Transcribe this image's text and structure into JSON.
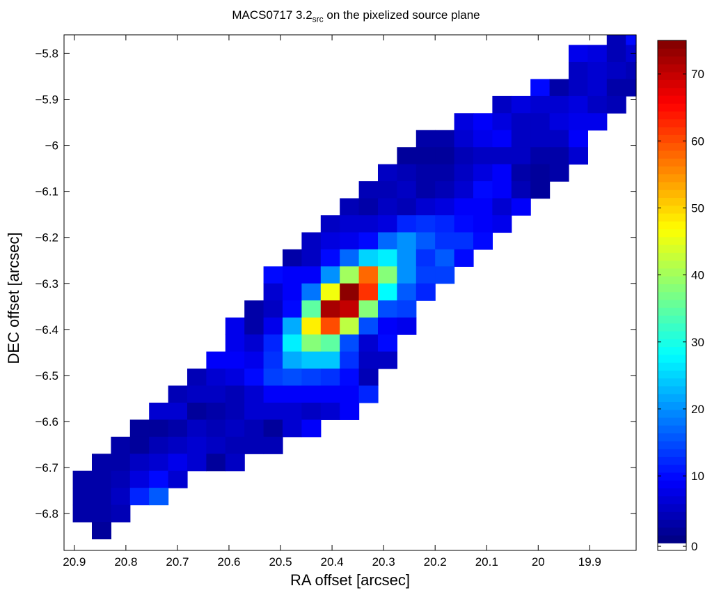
{
  "chart_data": {
    "type": "heatmap",
    "title": "MACS0717 3.2",
    "title_subscript": "src",
    "title_suffix": " on the pixelized source plane",
    "xlabel": "RA offset [arcsec]",
    "ylabel": "DEC offset [arcsec]",
    "xlim": [
      20.92,
      19.81
    ],
    "ylim": [
      -6.88,
      -5.76
    ],
    "x_reversed": true,
    "x_ticks": [
      20.9,
      20.8,
      20.7,
      20.6,
      20.5,
      20.4,
      20.3,
      20.2,
      20.1,
      20.0,
      19.9
    ],
    "x_tick_labels": [
      "20.9",
      "20.8",
      "20.7",
      "20.6",
      "20.5",
      "20.4",
      "20.3",
      "20.2",
      "20.1",
      "20",
      "19.9"
    ],
    "y_ticks": [
      -5.8,
      -5.9,
      -6.0,
      -6.1,
      -6.2,
      -6.3,
      -6.4,
      -6.5,
      -6.6,
      -6.7,
      -6.8
    ],
    "y_tick_labels": [
      "−5.8",
      "−5.9",
      "−6",
      "−6.1",
      "−6.2",
      "−6.3",
      "−6.4",
      "−6.5",
      "−6.6",
      "−6.7",
      "−6.8"
    ],
    "colorbar": {
      "colormap": "jet",
      "min": 0,
      "max": 75,
      "ticks": [
        0,
        10,
        20,
        30,
        40,
        50,
        60,
        70
      ],
      "tick_labels": [
        "0",
        "10",
        "20",
        "30",
        "40",
        "50",
        "60",
        "70"
      ]
    },
    "pixel_size_arcsec": 0.037,
    "x_start": 20.903,
    "y_start": -6.855,
    "grid": [
      [
        null,
        null,
        null,
        null,
        null,
        null,
        null,
        null,
        null,
        null,
        null,
        null,
        null,
        null,
        null,
        null,
        null,
        null,
        null,
        null,
        null,
        null,
        null,
        null,
        null,
        null,
        null,
        null,
        4,
        10,
        null
      ],
      [
        null,
        null,
        null,
        null,
        null,
        null,
        null,
        null,
        null,
        null,
        null,
        null,
        null,
        null,
        null,
        null,
        null,
        null,
        null,
        null,
        null,
        null,
        null,
        null,
        null,
        null,
        8,
        7,
        4,
        6,
        9
      ],
      [
        null,
        null,
        null,
        null,
        null,
        null,
        null,
        null,
        null,
        null,
        null,
        null,
        null,
        null,
        null,
        null,
        null,
        null,
        null,
        null,
        null,
        null,
        null,
        null,
        null,
        null,
        5,
        6,
        5,
        4,
        null
      ],
      [
        null,
        null,
        null,
        null,
        null,
        null,
        null,
        null,
        null,
        null,
        null,
        null,
        null,
        null,
        null,
        null,
        null,
        null,
        null,
        null,
        null,
        null,
        null,
        null,
        10,
        3,
        5,
        6,
        3,
        3,
        null
      ],
      [
        null,
        null,
        null,
        null,
        null,
        null,
        null,
        null,
        null,
        null,
        null,
        null,
        null,
        null,
        null,
        null,
        null,
        null,
        null,
        null,
        null,
        null,
        5,
        7,
        6,
        6,
        7,
        5,
        4,
        null,
        null
      ],
      [
        null,
        null,
        null,
        null,
        null,
        null,
        null,
        null,
        null,
        null,
        null,
        null,
        null,
        null,
        null,
        null,
        null,
        null,
        null,
        null,
        7,
        9,
        7,
        5,
        5,
        7,
        8,
        8,
        null,
        null,
        null
      ],
      [
        null,
        null,
        null,
        null,
        null,
        null,
        null,
        null,
        null,
        null,
        null,
        null,
        null,
        null,
        null,
        null,
        null,
        null,
        3,
        3,
        6,
        8,
        9,
        5,
        5,
        5,
        9,
        null,
        null,
        null,
        null
      ],
      [
        null,
        null,
        null,
        null,
        null,
        null,
        null,
        null,
        null,
        null,
        null,
        null,
        null,
        null,
        null,
        null,
        null,
        2,
        2,
        2,
        4,
        5,
        5,
        5,
        3,
        3,
        6,
        null,
        null,
        null,
        null
      ],
      [
        null,
        null,
        null,
        null,
        null,
        null,
        null,
        null,
        null,
        null,
        null,
        null,
        null,
        null,
        null,
        null,
        5,
        4,
        3,
        3,
        5,
        7,
        9,
        3,
        2,
        3,
        null,
        null,
        null,
        null,
        null
      ],
      [
        null,
        null,
        null,
        null,
        null,
        null,
        null,
        null,
        null,
        null,
        null,
        null,
        null,
        null,
        null,
        4,
        4,
        5,
        3,
        4,
        6,
        10,
        9,
        4,
        2,
        null,
        null,
        null,
        null,
        null,
        null
      ],
      [
        null,
        null,
        null,
        null,
        null,
        null,
        null,
        null,
        null,
        null,
        null,
        null,
        null,
        null,
        4,
        3,
        5,
        4,
        6,
        7,
        9,
        9,
        6,
        9,
        null,
        null,
        null,
        null,
        null,
        null,
        null
      ],
      [
        null,
        null,
        null,
        null,
        null,
        null,
        null,
        null,
        null,
        null,
        null,
        null,
        null,
        5,
        6,
        6,
        7,
        12,
        13,
        12,
        10,
        9,
        8,
        null,
        null,
        null,
        null,
        null,
        null,
        null,
        null
      ],
      [
        null,
        null,
        null,
        null,
        null,
        null,
        null,
        null,
        null,
        null,
        null,
        null,
        5,
        7,
        8,
        10,
        17,
        20,
        16,
        13,
        13,
        10,
        null,
        null,
        null,
        null,
        null,
        null,
        null,
        null,
        null
      ],
      [
        null,
        null,
        null,
        null,
        null,
        null,
        null,
        null,
        null,
        null,
        null,
        3,
        5,
        10,
        17,
        25,
        27,
        20,
        13,
        16,
        10,
        null,
        null,
        null,
        null,
        null,
        null,
        null,
        null,
        null,
        null
      ],
      [
        null,
        null,
        null,
        null,
        null,
        null,
        null,
        null,
        null,
        null,
        10,
        9,
        9,
        20,
        40,
        58,
        38,
        20,
        14,
        14,
        null,
        null,
        null,
        null,
        null,
        null,
        null,
        null,
        null,
        null,
        null
      ],
      [
        null,
        null,
        null,
        null,
        null,
        null,
        null,
        null,
        null,
        null,
        6,
        9,
        18,
        46,
        74,
        62,
        28,
        16,
        12,
        null,
        null,
        null,
        null,
        null,
        null,
        null,
        null,
        null,
        null,
        null,
        null
      ],
      [
        null,
        null,
        null,
        null,
        null,
        null,
        null,
        null,
        null,
        3,
        5,
        10,
        35,
        72,
        70,
        38,
        15,
        14,
        null,
        null,
        null,
        null,
        null,
        null,
        null,
        null,
        null,
        null,
        null,
        null,
        null
      ],
      [
        null,
        null,
        null,
        null,
        null,
        null,
        null,
        null,
        8,
        3,
        8,
        22,
        48,
        60,
        42,
        15,
        9,
        8,
        null,
        null,
        null,
        null,
        null,
        null,
        null,
        null,
        null,
        null,
        null,
        null,
        null
      ],
      [
        null,
        null,
        null,
        null,
        null,
        null,
        null,
        null,
        8,
        6,
        12,
        27,
        38,
        35,
        15,
        6,
        10,
        null,
        null,
        null,
        null,
        null,
        null,
        null,
        null,
        null,
        null,
        null,
        null,
        null,
        null
      ],
      [
        null,
        null,
        null,
        null,
        null,
        null,
        null,
        9,
        9,
        8,
        13,
        22,
        24,
        24,
        13,
        5,
        5,
        null,
        null,
        null,
        null,
        null,
        null,
        null,
        null,
        null,
        null,
        null,
        null,
        null,
        null
      ],
      [
        null,
        null,
        null,
        null,
        null,
        null,
        4,
        6,
        7,
        10,
        14,
        15,
        14,
        13,
        10,
        4,
        null,
        null,
        null,
        null,
        null,
        null,
        null,
        null,
        null,
        null,
        null,
        null,
        null,
        null,
        null
      ],
      [
        null,
        null,
        null,
        null,
        null,
        4,
        5,
        5,
        4,
        6,
        9,
        9,
        9,
        9,
        9,
        12,
        null,
        null,
        null,
        null,
        null,
        null,
        null,
        null,
        null,
        null,
        null,
        null,
        null,
        null,
        null
      ],
      [
        null,
        null,
        null,
        null,
        6,
        6,
        2,
        3,
        4,
        6,
        6,
        6,
        5,
        6,
        9,
        null,
        null,
        null,
        null,
        null,
        null,
        null,
        null,
        null,
        null,
        null,
        null,
        null,
        null,
        null,
        null
      ],
      [
        null,
        null,
        null,
        2,
        2,
        3,
        5,
        4,
        5,
        4,
        2,
        6,
        9,
        null,
        null,
        null,
        null,
        null,
        null,
        null,
        null,
        null,
        null,
        null,
        null,
        null,
        null,
        null,
        null,
        null,
        null
      ],
      [
        null,
        null,
        3,
        2,
        4,
        5,
        6,
        5,
        4,
        4,
        4,
        null,
        null,
        null,
        null,
        null,
        null,
        null,
        null,
        null,
        null,
        null,
        null,
        null,
        null,
        null,
        null,
        null,
        null,
        null,
        null
      ],
      [
        null,
        3,
        3,
        5,
        6,
        8,
        6,
        2,
        5,
        null,
        null,
        null,
        null,
        null,
        null,
        null,
        null,
        null,
        null,
        null,
        null,
        null,
        null,
        null,
        null,
        null,
        null,
        null,
        null,
        null,
        null
      ],
      [
        3,
        3,
        4,
        7,
        10,
        6,
        null,
        null,
        null,
        null,
        null,
        null,
        null,
        null,
        null,
        null,
        null,
        null,
        null,
        null,
        null,
        null,
        null,
        null,
        null,
        null,
        null,
        null,
        null,
        null,
        null
      ],
      [
        3,
        3,
        5,
        12,
        16,
        null,
        null,
        null,
        null,
        null,
        null,
        null,
        null,
        null,
        null,
        null,
        null,
        null,
        null,
        null,
        null,
        null,
        null,
        null,
        null,
        null,
        null,
        null,
        null,
        null,
        null
      ],
      [
        3,
        3,
        4,
        null,
        null,
        null,
        null,
        null,
        null,
        null,
        null,
        null,
        null,
        null,
        null,
        null,
        null,
        null,
        null,
        null,
        null,
        null,
        null,
        null,
        null,
        null,
        null,
        null,
        null,
        null,
        null
      ],
      [
        null,
        2,
        null,
        null,
        null,
        null,
        null,
        null,
        null,
        null,
        null,
        null,
        null,
        null,
        null,
        null,
        null,
        null,
        null,
        null,
        null,
        null,
        null,
        null,
        null,
        null,
        null,
        null,
        null,
        null,
        null
      ]
    ]
  }
}
